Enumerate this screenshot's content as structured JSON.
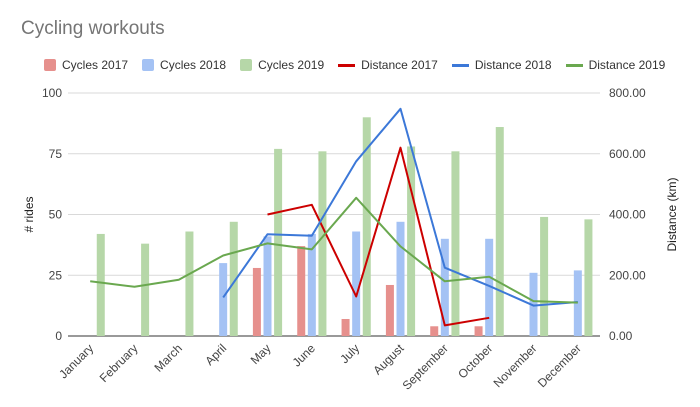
{
  "chart_data": {
    "type": "bar",
    "title": "Cycling workouts",
    "categories": [
      "January",
      "February",
      "March",
      "April",
      "May",
      "June",
      "July",
      "August",
      "September",
      "October",
      "November",
      "December"
    ],
    "ylabel": "# rides",
    "y2label": "Distance (km)",
    "ylim": [
      0,
      100
    ],
    "y2lim": [
      0,
      800
    ],
    "yticks": [
      "0",
      "25",
      "50",
      "75",
      "100"
    ],
    "y2ticks": [
      "0.00",
      "200.00",
      "400.00",
      "600.00",
      "800.00"
    ],
    "legend_position": "top",
    "bar_series": [
      {
        "name": "Cycles 2017",
        "color": "#e6908d",
        "values": [
          null,
          null,
          null,
          null,
          28,
          37,
          7,
          21,
          4,
          4,
          null,
          null
        ]
      },
      {
        "name": "Cycles 2018",
        "color": "#a4c2f4",
        "values": [
          null,
          null,
          null,
          30,
          41,
          42,
          43,
          47,
          40,
          40,
          26,
          27
        ]
      },
      {
        "name": "Cycles 2019",
        "color": "#b6d7a8",
        "values": [
          42,
          38,
          43,
          47,
          77,
          76,
          90,
          78,
          76,
          86,
          49,
          48
        ]
      }
    ],
    "line_series": [
      {
        "name": "Distance 2017",
        "color": "#cc0000",
        "values": [
          null,
          null,
          null,
          null,
          400,
          432,
          130,
          620,
          35,
          60,
          null,
          null
        ]
      },
      {
        "name": "Distance 2018",
        "color": "#3c78d8",
        "values": [
          null,
          null,
          null,
          127,
          335,
          330,
          575,
          748,
          225,
          165,
          100,
          112
        ]
      },
      {
        "name": "Distance 2019",
        "color": "#6aa84f",
        "values": [
          180,
          162,
          185,
          265,
          305,
          285,
          455,
          295,
          180,
          195,
          115,
          110
        ]
      }
    ]
  }
}
